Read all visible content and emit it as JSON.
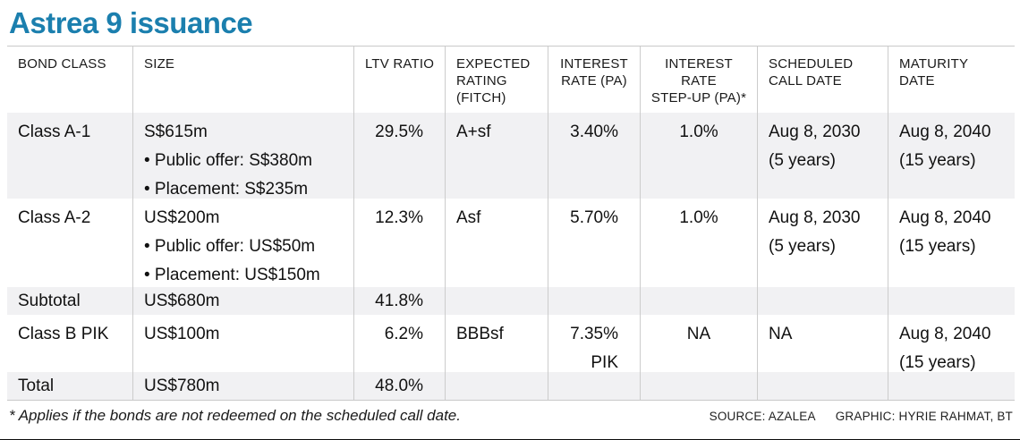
{
  "title": "Astrea 9 issuance",
  "colors": {
    "title_accent": "#1b7fae",
    "row_stripe": "#f1f1f3",
    "rule": "#cccccc",
    "bottom_bar": "#0c0c0c"
  },
  "table": {
    "headers": {
      "bond_class": "BOND CLASS",
      "size": "SIZE",
      "ltv_ratio": "LTV RATIO",
      "expected_rating": "EXPECTED\nRATING\n(FITCH)",
      "interest_rate": "INTEREST\nRATE (PA)",
      "step_up": "INTEREST\nRATE\nSTEP-UP (PA)*",
      "scheduled_call": "SCHEDULED\nCALL DATE",
      "maturity": "MATURITY\nDATE"
    },
    "rows": [
      {
        "bond_class": "Class A-1",
        "size": [
          "S$615m",
          "• Public offer: S$380m",
          "• Placement: S$235m"
        ],
        "ltv_ratio": "29.5%",
        "expected_rating": "A+sf",
        "interest_rate": [
          "3.40%"
        ],
        "step_up": "1.0%",
        "scheduled_call": [
          "Aug 8, 2030",
          "(5 years)"
        ],
        "maturity": [
          "Aug 8, 2040",
          "(15 years)"
        ]
      },
      {
        "bond_class": "Class A-2",
        "size": [
          "US$200m",
          "• Public offer: US$50m",
          "• Placement: US$150m"
        ],
        "ltv_ratio": "12.3%",
        "expected_rating": "Asf",
        "interest_rate": [
          "5.70%"
        ],
        "step_up": "1.0%",
        "scheduled_call": [
          "Aug 8, 2030",
          "(5 years)"
        ],
        "maturity": [
          "Aug 8, 2040",
          "(15 years)"
        ]
      },
      {
        "bond_class": "Subtotal",
        "size": [
          "US$680m"
        ],
        "ltv_ratio": "41.8%"
      },
      {
        "bond_class": "Class B PIK",
        "size": [
          "US$100m"
        ],
        "ltv_ratio": "6.2%",
        "expected_rating": "BBBsf",
        "interest_rate": [
          "7.35%",
          "PIK"
        ],
        "step_up": "NA",
        "scheduled_call": [
          "NA"
        ],
        "maturity": [
          "Aug 8, 2040",
          "(15 years)"
        ]
      },
      {
        "bond_class": "Total",
        "size": [
          "US$780m"
        ],
        "ltv_ratio": "48.0%"
      }
    ]
  },
  "footnote": "* Applies if the bonds are not redeemed on the scheduled call date.",
  "source": "SOURCE: AZALEA",
  "credit": "GRAPHIC: HYRIE RAHMAT, BT",
  "chart_data": {
    "type": "table",
    "title": "Astrea 9 issuance",
    "columns": [
      "BOND CLASS",
      "SIZE",
      "LTV RATIO",
      "EXPECTED RATING (FITCH)",
      "INTEREST RATE (PA)",
      "INTEREST RATE STEP-UP (PA)*",
      "SCHEDULED CALL DATE",
      "MATURITY DATE"
    ],
    "rows": [
      [
        "Class A-1",
        "S$615m (Public offer: S$380m; Placement: S$235m)",
        "29.5%",
        "A+sf",
        "3.40%",
        "1.0%",
        "Aug 8, 2030 (5 years)",
        "Aug 8, 2040 (15 years)"
      ],
      [
        "Class A-2",
        "US$200m (Public offer: US$50m; Placement: US$150m)",
        "12.3%",
        "Asf",
        "5.70%",
        "1.0%",
        "Aug 8, 2030 (5 years)",
        "Aug 8, 2040 (15 years)"
      ],
      [
        "Subtotal",
        "US$680m",
        "41.8%",
        "",
        "",
        "",
        "",
        ""
      ],
      [
        "Class B PIK",
        "US$100m",
        "6.2%",
        "BBBsf",
        "7.35% PIK",
        "NA",
        "NA",
        "Aug 8, 2040 (15 years)"
      ],
      [
        "Total",
        "US$780m",
        "48.0%",
        "",
        "",
        "",
        "",
        ""
      ]
    ]
  }
}
